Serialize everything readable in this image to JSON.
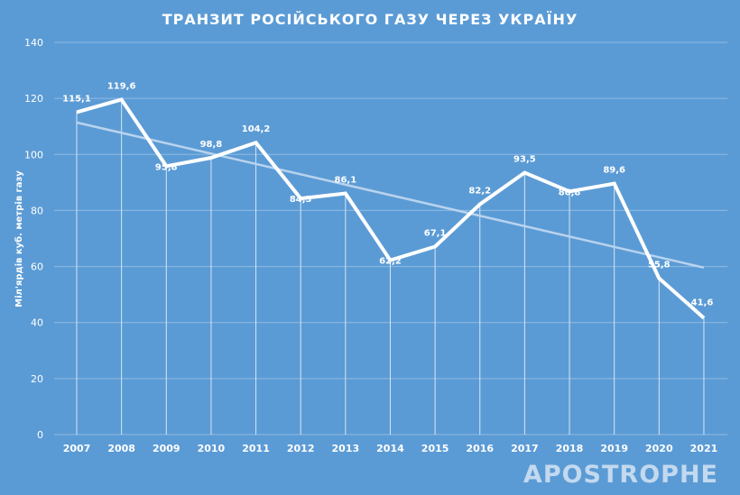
{
  "chart_data": {
    "type": "line",
    "title": "ТРАНЗИТ РОСІЙСЬКОГО ГАЗУ ЧЕРЕЗ УКРАЇНУ",
    "ylabel": "Міл'ярдів куб. метрів газу",
    "xlabel": "",
    "categories": [
      "2007",
      "2008",
      "2009",
      "2010",
      "2011",
      "2012",
      "2013",
      "2014",
      "2015",
      "2016",
      "2017",
      "2018",
      "2019",
      "2020",
      "2021"
    ],
    "series": [
      {
        "values": [
          115.1,
          119.6,
          95.8,
          98.8,
          104.2,
          84.3,
          86.1,
          62.2,
          67.1,
          82.2,
          93.5,
          86.8,
          89.6,
          55.8,
          41.6
        ],
        "labels": [
          "115,1",
          "119,6",
          "95,8",
          "98,8",
          "104,2",
          "84,3",
          "86,1",
          "62,2",
          "67,1",
          "82,2",
          "93,5",
          "86,8",
          "89,6",
          "55,8",
          "41,6"
        ],
        "color": "#ffffff"
      }
    ],
    "trendline": {
      "start": 111.4,
      "end": 59.6,
      "color": "#b9d3ee"
    },
    "ylim": [
      0,
      140
    ],
    "yticks": [
      "0",
      "20",
      "40",
      "60",
      "80",
      "100",
      "120",
      "140"
    ],
    "grid": true,
    "legend": "none"
  },
  "watermark": "APOSTROPHE",
  "colors": {
    "background": "#5b9bd5",
    "line": "#ffffff",
    "grid": "#8fbbe3"
  }
}
